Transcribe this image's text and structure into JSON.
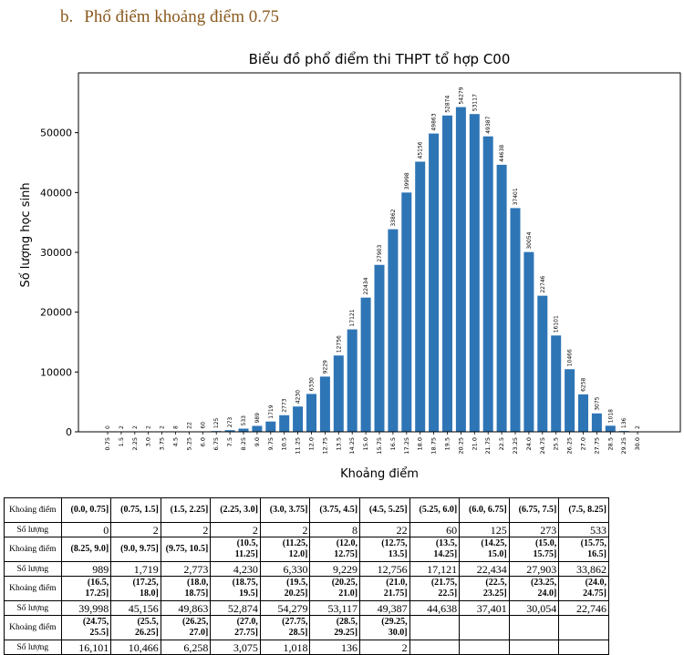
{
  "heading": {
    "number": "b.",
    "text": "Phổ điểm khoảng điểm 0.75"
  },
  "chart_data": {
    "type": "bar",
    "title": "Biểu đồ phổ điểm thi THPT tổ hợp C00",
    "xlabel": "Khoảng điểm",
    "ylabel": "Số lượng học sinh",
    "ylim": [
      0,
      60000
    ],
    "yticks": [
      0,
      10000,
      20000,
      30000,
      40000,
      50000
    ],
    "categories": [
      "0.75",
      "1.5",
      "2.25",
      "3.0",
      "3.75",
      "4.5",
      "5.25",
      "6.0",
      "6.75",
      "7.5",
      "8.25",
      "9.0",
      "9.75",
      "10.5",
      "11.25",
      "12.0",
      "12.75",
      "13.5",
      "14.25",
      "15.0",
      "15.75",
      "16.5",
      "17.25",
      "18.0",
      "18.75",
      "19.5",
      "20.25",
      "21.0",
      "21.75",
      "22.5",
      "23.25",
      "24.0",
      "24.75",
      "25.5",
      "26.25",
      "27.0",
      "27.75",
      "28.5",
      "29.25",
      "30.0"
    ],
    "values": [
      0,
      2,
      2,
      2,
      2,
      8,
      22,
      60,
      125,
      273,
      533,
      989,
      1719,
      2773,
      4230,
      6330,
      9229,
      12756,
      17121,
      22434,
      27903,
      33862,
      39998,
      45156,
      49863,
      52874,
      54279,
      53117,
      49387,
      44638,
      37401,
      30054,
      22746,
      16101,
      10466,
      6258,
      3075,
      1018,
      136,
      2
    ],
    "bar_color": "#2e75b6",
    "grid": false
  },
  "table": {
    "range_label": "Khoảng điểm",
    "count_label": "Số lượng",
    "blocks": [
      {
        "ranges": [
          "(0.0, 0.75]",
          "(0.75, 1.5]",
          "(1.5, 2.25]",
          "(2.25, 3.0]",
          "(3.0, 3.75]",
          "(3.75, 4.5]",
          "(4.5, 5.25]",
          "(5.25, 6.0]",
          "(6.0, 6.75]",
          "(6.75, 7.5]",
          "(7.5, 8.25]"
        ],
        "counts": [
          "0",
          "2",
          "2",
          "2",
          "2",
          "8",
          "22",
          "60",
          "125",
          "273",
          "533"
        ]
      },
      {
        "ranges": [
          "(8.25, 9.0]",
          "(9.0, 9.75]",
          "(9.75, 10.5]",
          "(10.5, 11.25]",
          "(11.25, 12.0]",
          "(12.0, 12.75]",
          "(12.75, 13.5]",
          "(13.5, 14.25]",
          "(14.25, 15.0]",
          "(15.0, 15.75]",
          "(15.75, 16.5]"
        ],
        "counts": [
          "989",
          "1,719",
          "2,773",
          "4,230",
          "6,330",
          "9,229",
          "12,756",
          "17,121",
          "22,434",
          "27,903",
          "33,862"
        ]
      },
      {
        "ranges": [
          "(16.5, 17.25]",
          "(17.25, 18.0]",
          "(18.0, 18.75]",
          "(18.75, 19.5]",
          "(19.5, 20.25]",
          "(20.25, 21.0]",
          "(21.0, 21.75]",
          "(21.75, 22.5]",
          "(22.5, 23.25]",
          "(23.25, 24.0]",
          "(24.0, 24.75]"
        ],
        "counts": [
          "39,998",
          "45,156",
          "49,863",
          "52,874",
          "54,279",
          "53,117",
          "49,387",
          "44,638",
          "37,401",
          "30,054",
          "22,746"
        ]
      },
      {
        "ranges": [
          "(24.75, 25.5]",
          "(25.5, 26.25]",
          "(26.25, 27.0]",
          "(27.0, 27.75]",
          "(27.75, 28.5]",
          "(28.5, 29.25]",
          "(29.25, 30.0]",
          "",
          "",
          "",
          ""
        ],
        "counts": [
          "16,101",
          "10,466",
          "6,258",
          "3,075",
          "1,018",
          "136",
          "2",
          "",
          "",
          "",
          ""
        ]
      }
    ]
  }
}
